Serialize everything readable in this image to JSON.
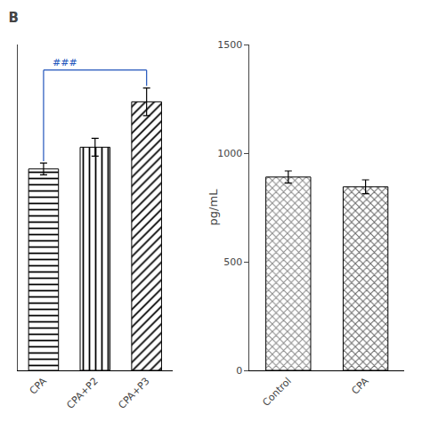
{
  "chart_data": [
    {
      "type": "bar",
      "title": "B",
      "categories": [
        "CPA",
        "CPA+P2",
        "CPA+P3"
      ],
      "values": [
        1.02,
        1.13,
        1.36
      ],
      "errors": [
        0.03,
        0.045,
        0.07
      ],
      "color": "white",
      "ylim": [
        0,
        1.65
      ],
      "yticks": [],
      "grid": false,
      "tick_labels": "x",
      "annotations": [
        {
          "text": "###",
          "from": "CPA",
          "to": "CPA+P3",
          "color": "#2255BB"
        }
      ]
    },
    {
      "type": "bar",
      "categories": [
        "Control",
        "CPA"
      ],
      "values": [
        890,
        845
      ],
      "errors": [
        28,
        32
      ],
      "colors": [
        "#888888",
        "#666666"
      ],
      "ylabel": "pg/mL",
      "ylim": [
        0,
        1500
      ],
      "yticks": [
        0,
        500,
        1000,
        1500
      ],
      "grid": false
    }
  ]
}
